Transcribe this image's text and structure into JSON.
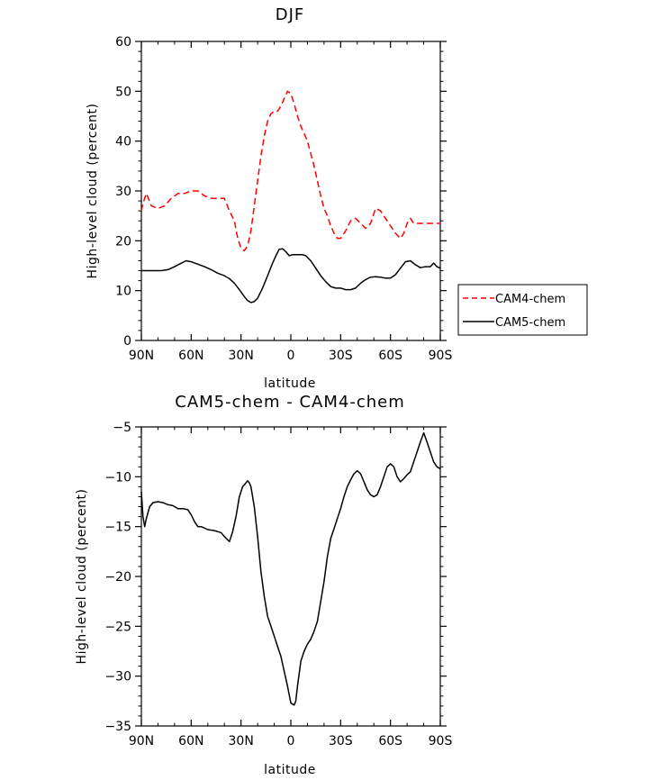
{
  "chart_data": [
    {
      "type": "line",
      "title": "DJF",
      "xlabel": "latitude",
      "ylabel": "High-level cloud (percent)",
      "xlim": [
        90,
        -90
      ],
      "ylim": [
        0,
        60
      ],
      "x_ticks": [
        90,
        60,
        30,
        0,
        -30,
        -60,
        -90
      ],
      "x_tick_labels": [
        "90N",
        "60N",
        "30N",
        "0",
        "30S",
        "60S",
        "90S"
      ],
      "y_ticks": [
        0,
        10,
        20,
        30,
        40,
        50,
        60
      ],
      "y_tick_labels": [
        "0",
        "10",
        "20",
        "30",
        "40",
        "50",
        "60"
      ],
      "legend_position": "right",
      "series": [
        {
          "name": "CAM4-chem",
          "color": "#ff0000",
          "style": "dashed",
          "x": [
            90,
            89,
            87,
            84,
            80,
            76,
            72,
            68,
            64,
            60,
            56,
            52,
            48,
            44,
            40,
            37,
            34,
            32,
            30,
            28,
            26,
            24,
            22,
            20,
            18,
            16,
            14,
            12,
            10,
            8,
            6,
            4,
            2,
            0,
            -2,
            -4,
            -6,
            -8,
            -10,
            -12,
            -14,
            -16,
            -18,
            -20,
            -22,
            -24,
            -26,
            -28,
            -30,
            -33,
            -36,
            -39,
            -42,
            -45,
            -48,
            -51,
            -54,
            -57,
            -60,
            -63,
            -66,
            -68,
            -70,
            -72,
            -74,
            -76,
            -78,
            -80,
            -82,
            -84,
            -86,
            -88,
            -90
          ],
          "y": [
            26,
            27.5,
            29.5,
            27,
            26.5,
            27,
            28.5,
            29.5,
            29.5,
            30,
            30,
            29,
            28.5,
            28.5,
            28.5,
            26,
            24,
            20.5,
            18.5,
            18,
            19,
            22,
            27,
            32,
            37,
            41,
            44,
            45.5,
            46,
            46,
            47,
            48.5,
            50,
            49.5,
            47.5,
            45,
            43,
            41.5,
            40,
            37.5,
            35,
            32,
            29,
            26.5,
            25,
            23,
            21.5,
            20.5,
            20.5,
            22,
            24,
            24.5,
            23.5,
            22.5,
            23.5,
            26.5,
            26,
            24.5,
            23,
            21.5,
            20.5,
            21.5,
            23.5,
            24.5,
            23.5,
            23.5,
            23.5,
            23.5,
            23.5,
            23.5,
            23.5,
            23.5,
            23.5
          ]
        },
        {
          "name": "CAM5-chem",
          "color": "#000000",
          "style": "solid",
          "x": [
            90,
            88,
            85,
            82,
            78,
            74,
            70,
            66,
            63,
            60,
            56,
            52,
            48,
            44,
            40,
            37,
            34,
            31,
            28,
            26,
            24,
            22,
            20,
            17,
            14,
            11,
            9,
            7,
            5,
            3,
            1,
            -1,
            -3,
            -5,
            -7,
            -9,
            -12,
            -15,
            -18,
            -21,
            -24,
            -27,
            -30,
            -33,
            -36,
            -39,
            -42,
            -45,
            -48,
            -51,
            -54,
            -57,
            -60,
            -63,
            -66,
            -69,
            -72,
            -75,
            -78,
            -81,
            -84,
            -86,
            -88,
            -90
          ],
          "y": [
            14,
            14,
            14,
            14,
            14,
            14.2,
            14.8,
            15.5,
            16,
            15.8,
            15.3,
            14.8,
            14.2,
            13.5,
            13,
            12.4,
            11.5,
            10.2,
            8.8,
            8,
            7.6,
            7.8,
            8.5,
            10.5,
            13,
            15.5,
            17,
            18.3,
            18.4,
            17.8,
            17,
            17.2,
            17.2,
            17.2,
            17.2,
            17,
            16,
            14.5,
            13,
            11.8,
            10.8,
            10.5,
            10.5,
            10.2,
            10.2,
            10.5,
            11.5,
            12.2,
            12.7,
            12.8,
            12.7,
            12.5,
            12.5,
            13.2,
            14.5,
            15.8,
            16,
            15.2,
            14.6,
            14.8,
            14.8,
            15.5,
            14.8,
            14.5
          ]
        }
      ]
    },
    {
      "type": "line",
      "title": "CAM5-chem - CAM4-chem",
      "xlabel": "latitude",
      "ylabel": "High-level cloud (percent)",
      "xlim": [
        90,
        -90
      ],
      "ylim": [
        -35,
        -5
      ],
      "x_ticks": [
        90,
        60,
        30,
        0,
        -30,
        -60,
        -90
      ],
      "x_tick_labels": [
        "90N",
        "60N",
        "30N",
        "0",
        "30S",
        "60S",
        "90S"
      ],
      "y_ticks": [
        -35,
        -30,
        -25,
        -20,
        -15,
        -10,
        -5
      ],
      "y_tick_labels": [
        "-35",
        "-30",
        "-25",
        "-20",
        "-15",
        "-10",
        "-5"
      ],
      "series": [
        {
          "name": "CAM5-chem - CAM4-chem",
          "color": "#000000",
          "style": "solid",
          "x": [
            90,
            89,
            88,
            87,
            85,
            83,
            80,
            77,
            74,
            71,
            68,
            65,
            62,
            60,
            58,
            56,
            54,
            50,
            46,
            42,
            40,
            37,
            35,
            33,
            31,
            29,
            27,
            26,
            25,
            24,
            22,
            20,
            18,
            16,
            14,
            12,
            10,
            8,
            6,
            4,
            2,
            0,
            -1,
            -2,
            -3,
            -4,
            -5,
            -6,
            -8,
            -10,
            -12,
            -14,
            -16,
            -18,
            -20,
            -22,
            -24,
            -26,
            -28,
            -30,
            -32,
            -34,
            -36,
            -38,
            -40,
            -42,
            -44,
            -46,
            -48,
            -50,
            -52,
            -54,
            -56,
            -58,
            -60,
            -62,
            -64,
            -66,
            -68,
            -70,
            -72,
            -74,
            -76,
            -78,
            -80,
            -82,
            -84,
            -86,
            -88,
            -90
          ],
          "y": [
            -11.5,
            -14,
            -15,
            -14.2,
            -13,
            -12.6,
            -12.5,
            -12.6,
            -12.8,
            -12.9,
            -13.2,
            -13.2,
            -13.3,
            -13.8,
            -14.5,
            -15,
            -15,
            -15.3,
            -15.4,
            -15.6,
            -16,
            -16.5,
            -15.5,
            -14,
            -12,
            -11,
            -10.6,
            -10.4,
            -10.6,
            -11,
            -13,
            -16,
            -19.5,
            -22,
            -24,
            -25,
            -26,
            -27,
            -28,
            -29.5,
            -31,
            -32.7,
            -32.8,
            -32.9,
            -32.5,
            -31,
            -29.8,
            -28.5,
            -27.5,
            -26.8,
            -26.3,
            -25.5,
            -24.5,
            -22.5,
            -20.5,
            -18,
            -16.2,
            -15.2,
            -14.2,
            -13.2,
            -12,
            -11,
            -10.3,
            -9.7,
            -9.4,
            -9.7,
            -10.5,
            -11.3,
            -11.8,
            -12,
            -11.8,
            -11,
            -10,
            -9,
            -8.7,
            -9,
            -10,
            -10.5,
            -10.2,
            -9.8,
            -9.5,
            -8.5,
            -7.5,
            -6.5,
            -5.6,
            -6.5,
            -7.5,
            -8.5,
            -9,
            -9.2
          ]
        }
      ]
    }
  ]
}
